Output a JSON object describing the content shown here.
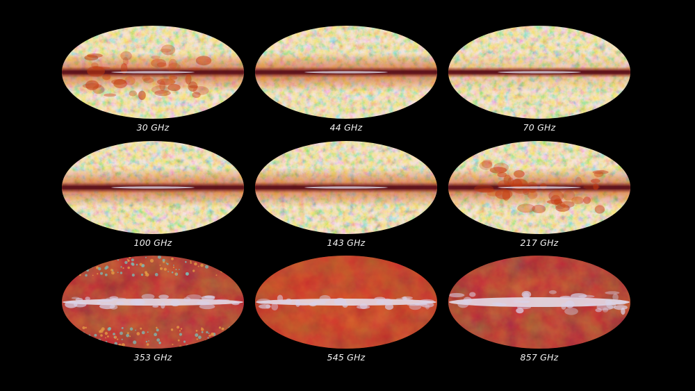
{
  "maps": [
    {
      "label": "30 GHz",
      "style": "cmb-strong"
    },
    {
      "label": "44 GHz",
      "style": "cmb"
    },
    {
      "label": "70 GHz",
      "style": "cmb-thin"
    },
    {
      "label": "100 GHz",
      "style": "cmb"
    },
    {
      "label": "143 GHz",
      "style": "cmb"
    },
    {
      "label": "217 GHz",
      "style": "cmb-dusty"
    },
    {
      "label": "353 GHz",
      "style": "dust-mixed"
    },
    {
      "label": "545 GHz",
      "style": "dust"
    },
    {
      "label": "857 GHz",
      "style": "dust-deep"
    }
  ],
  "colors": {
    "background": "#000000",
    "label": "#f2f2f2",
    "cold": "#3a8fd6",
    "mid": "#9fc9a8",
    "warm": "#e9a04a",
    "hot": "#c43a0f",
    "dark": "#5a0a14",
    "plane": "#e6e4f2"
  }
}
